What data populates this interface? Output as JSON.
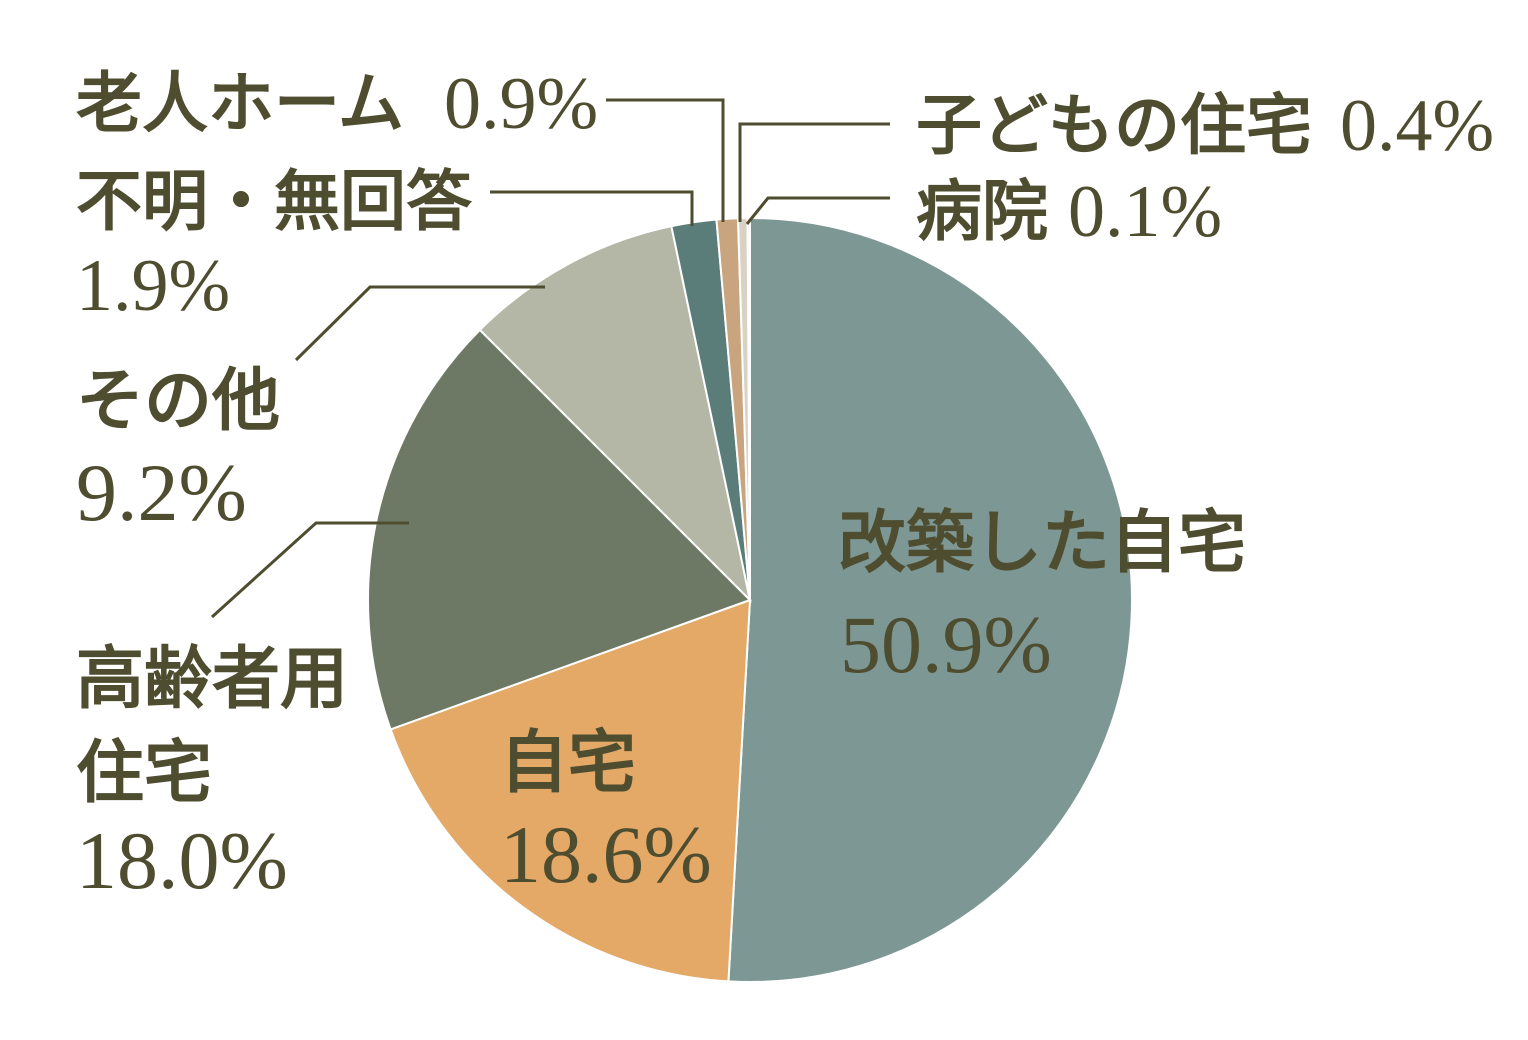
{
  "chart_data": {
    "type": "pie",
    "title": "",
    "start_angle_deg": 0,
    "direction": "clockwise",
    "slices": [
      {
        "label": "改築した自宅",
        "label_lines": [
          "改築した自宅"
        ],
        "value": 50.9,
        "value_label": "50.9%",
        "color": "#7d9795"
      },
      {
        "label": "自宅",
        "label_lines": [
          "自宅"
        ],
        "value": 18.6,
        "value_label": "18.6%",
        "color": "#e4a867"
      },
      {
        "label": "高齢者用住宅",
        "label_lines": [
          "高齢者用",
          "住宅"
        ],
        "value": 18.0,
        "value_label": "18.0%",
        "color": "#6d7965"
      },
      {
        "label": "その他",
        "label_lines": [
          "その他"
        ],
        "value": 9.2,
        "value_label": "9.2%",
        "color": "#b4b7a6"
      },
      {
        "label": "不明・無回答",
        "label_lines": [
          "不明・無回答"
        ],
        "value": 1.9,
        "value_label": "1.9%",
        "color": "#5a7d7a"
      },
      {
        "label": "老人ホーム",
        "label_lines": [
          "老人ホーム"
        ],
        "value": 0.9,
        "value_label": "0.9%",
        "color": "#c9a57f"
      },
      {
        "label": "子どもの住宅",
        "label_lines": [
          "子どもの住宅"
        ],
        "value": 0.4,
        "value_label": "0.4%",
        "color": "#d9d2c4"
      },
      {
        "label": "病院",
        "label_lines": [
          "病院"
        ],
        "value": 0.1,
        "value_label": "0.1%",
        "color": "#e8e4da"
      }
    ]
  }
}
